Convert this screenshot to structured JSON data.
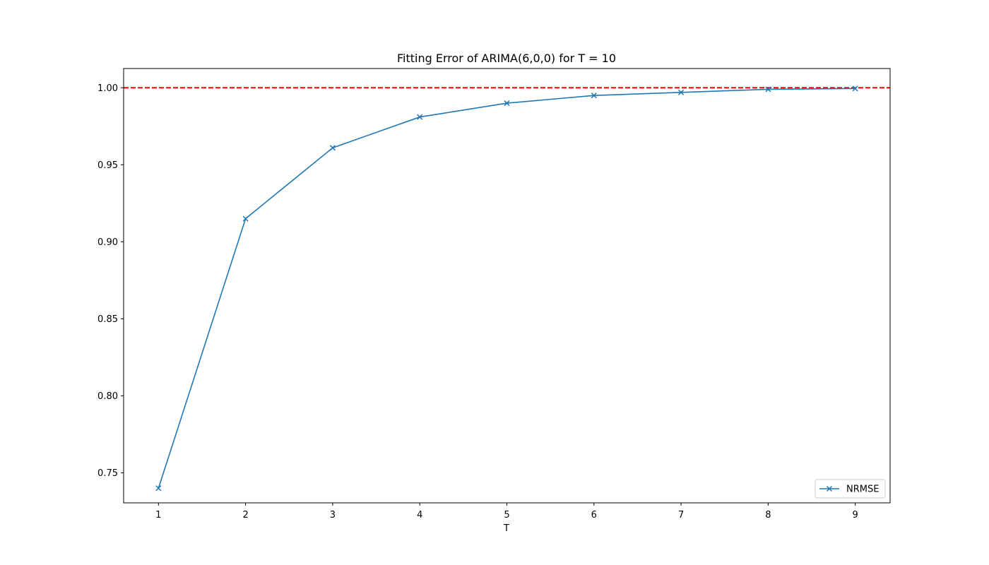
{
  "chart_data": {
    "type": "line",
    "title": "Fitting Error of ARIMA(6,0,0) for T = 10",
    "xlabel": "T",
    "ylabel": "",
    "x": [
      1,
      2,
      3,
      4,
      5,
      6,
      7,
      8,
      9
    ],
    "series": [
      {
        "name": "NRMSE",
        "values": [
          0.74,
          0.915,
          0.961,
          0.981,
          0.99,
          0.995,
          0.997,
          0.999,
          0.9995
        ],
        "color": "#1f77b4",
        "marker": "x"
      }
    ],
    "reference_line": {
      "y": 1.0,
      "color": "#ff0000",
      "style": "dashed"
    },
    "xlim": [
      0.6,
      9.4
    ],
    "ylim": [
      0.7305,
      1.0125
    ],
    "xticks": [
      "1",
      "2",
      "3",
      "4",
      "5",
      "6",
      "7",
      "8",
      "9"
    ],
    "yticks": [
      "0.75",
      "0.80",
      "0.85",
      "0.90",
      "0.95",
      "1.00"
    ],
    "ytick_values": [
      0.75,
      0.8,
      0.85,
      0.9,
      0.95,
      1.0
    ],
    "grid": false,
    "legend_position": "lower-right"
  }
}
